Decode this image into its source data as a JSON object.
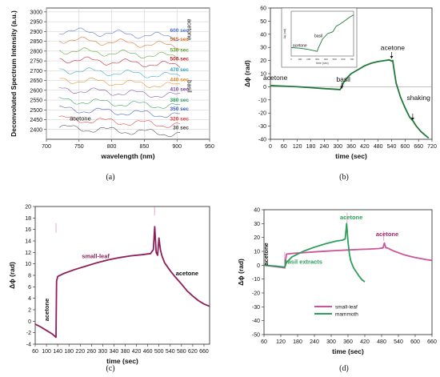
{
  "figure": {
    "panel_labels": [
      "(a)",
      "(b)",
      "(c)",
      "(d)"
    ]
  },
  "chart_data": [
    {
      "type": "line",
      "panel": "a",
      "xlabel": "wavelength (nm)",
      "ylabel": "Deconvoluted Spectrum Intensity (a.u.)",
      "xlim": [
        700,
        950
      ],
      "ylim": [
        2350,
        3020
      ],
      "xticks": [
        700,
        750,
        800,
        850,
        900,
        950
      ],
      "yticks": [
        2400,
        2450,
        2500,
        2550,
        2600,
        2650,
        2700,
        2750,
        2800,
        2850,
        2900,
        2950,
        3000
      ],
      "grid": true,
      "x_range": [
        720,
        905
      ],
      "series": [
        {
          "name": "30 sec",
          "color": "#444444",
          "baseline": 2410
        },
        {
          "name": "320 sec",
          "color": "#e03a3a",
          "baseline": 2455
        },
        {
          "name": "350 sec",
          "color": "#3a5ac0",
          "baseline": 2505
        },
        {
          "name": "380 sec",
          "color": "#2e9e63",
          "baseline": 2550
        },
        {
          "name": "410 sec",
          "color": "#7a4aa8",
          "baseline": 2605
        },
        {
          "name": "440 sec",
          "color": "#e58a1f",
          "baseline": 2655
        },
        {
          "name": "470 sec",
          "color": "#2aa6c4",
          "baseline": 2705
        },
        {
          "name": "500 sec",
          "color": "#c0182c",
          "baseline": 2760
        },
        {
          "name": "530 sec",
          "color": "#5aa02c",
          "baseline": 2805
        },
        {
          "name": "565 sec",
          "color": "#e06a1a",
          "baseline": 2860
        },
        {
          "name": "600 sec",
          "color": "#4a6fcf",
          "baseline": 2905
        }
      ],
      "annotations": [
        {
          "text": "acetone",
          "x": 752,
          "y": 2445
        },
        {
          "text": "basil",
          "x": 916,
          "y": 2620,
          "rotate": 90
        },
        {
          "text": "acetone",
          "x": 916,
          "y": 2910,
          "rotate": 90
        }
      ]
    },
    {
      "type": "line",
      "panel": "b",
      "xlabel": "time (sec)",
      "ylabel": "Δϕ (rad)",
      "xlim": [
        0,
        720
      ],
      "ylim": [
        -40,
        60
      ],
      "xticks": [
        0,
        60,
        120,
        180,
        240,
        300,
        360,
        420,
        480,
        540,
        600,
        660,
        720
      ],
      "yticks": [
        -40,
        -30,
        -20,
        -10,
        0,
        10,
        20,
        30,
        40,
        50,
        60
      ],
      "series": [
        {
          "name": "",
          "color": "#1f7a3a",
          "x": [
            0,
            20,
            60,
            120,
            180,
            240,
            300,
            310,
            318,
            325,
            340,
            360,
            390,
            420,
            450,
            480,
            510,
            530,
            540,
            545,
            550,
            560,
            580,
            600,
            620,
            635,
            650,
            670,
            690,
            705
          ],
          "y": [
            1,
            0.8,
            0.5,
            0,
            -0.7,
            -1.4,
            -2,
            -2.2,
            0,
            3,
            6.5,
            10,
            13,
            16,
            18,
            19.2,
            20,
            20.5,
            19.5,
            20,
            14,
            3,
            -8,
            -16,
            -23,
            -26,
            -30,
            -34,
            -37,
            -39
          ]
        }
      ],
      "annotations": [
        {
          "text": "acetone",
          "x": 22,
          "y": 5
        },
        {
          "text": "basil",
          "x": 325,
          "y": 4
        },
        {
          "text": "acetone",
          "x": 545,
          "y": 28
        },
        {
          "text": "shaking",
          "x": 660,
          "y": -10
        }
      ],
      "inset": {
        "xlabel": "time (sec)",
        "ylabel": "Δϕ (rad)",
        "xlim": [
          0,
          720
        ],
        "ylim": [
          -4,
          20
        ],
        "xticks": [
          0,
          100,
          200,
          300,
          400,
          500,
          600,
          700
        ],
        "series": [
          {
            "name": "",
            "color": "#1f7a3a",
            "x": [
              0,
              100,
              200,
              300,
              310,
              330,
              360,
              420,
              480,
              520,
              560,
              620,
              680,
              720
            ],
            "y": [
              0.5,
              0.2,
              -0.5,
              -1.5,
              0,
              2,
              5,
              8,
              9,
              12,
              13,
              15,
              17,
              18
            ]
          }
        ],
        "annotations": [
          {
            "text": "acetone",
            "x": 100,
            "y": 1
          },
          {
            "text": "basil",
            "x": 315,
            "y": 6
          }
        ]
      }
    },
    {
      "type": "line",
      "panel": "c",
      "xlabel": "time (sec)",
      "ylabel": "Δϕ (rad)",
      "xlim": [
        60,
        680
      ],
      "ylim": [
        -4,
        20
      ],
      "xticks": [
        60,
        100,
        140,
        180,
        220,
        260,
        300,
        340,
        380,
        420,
        460,
        500,
        540,
        580,
        620,
        660
      ],
      "yticks": [
        -4,
        -2,
        0,
        2,
        4,
        6,
        8,
        10,
        12,
        14,
        16,
        18,
        20
      ],
      "series": [
        {
          "name": "small-leaf",
          "color": "#8e1e5a",
          "x": [
            60,
            80,
            100,
            120,
            134,
            136,
            140,
            160,
            200,
            240,
            280,
            320,
            360,
            400,
            440,
            470,
            480,
            485,
            490,
            495,
            500,
            505,
            510,
            520,
            540,
            560,
            580,
            600,
            620,
            640,
            660,
            680
          ],
          "y": [
            -0.5,
            -1,
            -1.6,
            -2.2,
            -2.8,
            7,
            7.8,
            8.3,
            9,
            9.6,
            10.2,
            10.7,
            11.1,
            11.4,
            11.6,
            11.8,
            12.5,
            16.5,
            12,
            11.5,
            14.5,
            12.5,
            11.5,
            10.2,
            8.8,
            7.6,
            6.5,
            5.3,
            4.4,
            3.6,
            3,
            2.6
          ]
        }
      ],
      "annotations": [
        {
          "text": "small-leaf",
          "x": 275,
          "y": 11
        },
        {
          "text": "acetone",
          "x": 600,
          "y": 8
        },
        {
          "text": "acetone",
          "x": 108,
          "y": 2
        }
      ]
    },
    {
      "type": "line",
      "panel": "d",
      "xlabel": "time (sec)",
      "ylabel": "Δϕ (rad)",
      "xlim": [
        60,
        660
      ],
      "ylim": [
        -50,
        40
      ],
      "xticks": [
        60,
        120,
        180,
        240,
        300,
        360,
        420,
        480,
        540,
        600,
        660
      ],
      "yticks": [
        -50,
        -40,
        -30,
        -20,
        -10,
        0,
        10,
        20,
        30,
        40
      ],
      "legend": "bottom-center",
      "series": [
        {
          "name": "small-leaf",
          "color": "#c9559a",
          "x": [
            60,
            80,
            100,
            120,
            134,
            140,
            160,
            200,
            240,
            280,
            320,
            360,
            400,
            440,
            470,
            485,
            490,
            495,
            500,
            520,
            540,
            560,
            580,
            600,
            620,
            640,
            660
          ],
          "y": [
            0,
            -0.5,
            -1,
            -1.5,
            -2,
            8,
            8.5,
            9,
            9.6,
            10.1,
            10.6,
            11,
            11.4,
            11.7,
            12,
            12.5,
            16,
            12.5,
            12.5,
            10.5,
            9,
            7.5,
            6.5,
            5.5,
            4.8,
            4,
            3.5
          ]
        },
        {
          "name": "mammoth",
          "color": "#2e9e5a",
          "x": [
            60,
            80,
            100,
            120,
            134,
            140,
            160,
            200,
            240,
            280,
            320,
            340,
            350,
            355,
            360,
            365,
            370,
            380,
            390,
            400,
            410,
            420
          ],
          "y": [
            0,
            -0.3,
            -0.6,
            -1,
            -1.5,
            2,
            6,
            10,
            13,
            15.5,
            17.5,
            18,
            19,
            30,
            17,
            8,
            3,
            -2,
            -5,
            -8,
            -10.5,
            -12
          ]
        }
      ],
      "annotations": [
        {
          "text": "acetone",
          "x": 75,
          "y": 8
        },
        {
          "text": "acetone",
          "x": 372,
          "y": 33
        },
        {
          "text": "basil extracts",
          "x": 200,
          "y": 1
        },
        {
          "text": "acetone",
          "x": 500,
          "y": 21
        }
      ]
    }
  ]
}
